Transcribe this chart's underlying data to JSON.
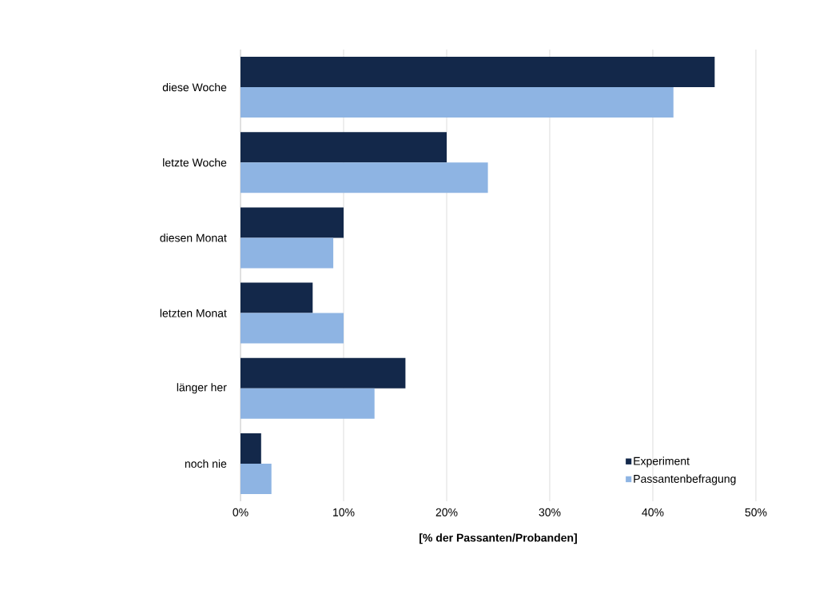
{
  "chart_data": {
    "type": "bar",
    "orientation": "horizontal",
    "xlabel": "[% der Passanten/Probanden]",
    "categories": [
      "diese Woche",
      "letzte Woche",
      "diesen Monat",
      "letzten Monat",
      "länger her",
      "noch nie"
    ],
    "series": [
      {
        "name": "Experiment",
        "color": "#13284a",
        "values": [
          46,
          20,
          10,
          7,
          16,
          2
        ]
      },
      {
        "name": "Passantenbefragung",
        "color": "#8eb4e3",
        "values": [
          42,
          24,
          9,
          10,
          13,
          3
        ]
      }
    ],
    "xlim": [
      0,
      50
    ],
    "xticks": [
      {
        "value": 0,
        "label": "0%"
      },
      {
        "value": 10,
        "label": "10%"
      },
      {
        "value": 20,
        "label": "20%"
      },
      {
        "value": 30,
        "label": "30%"
      },
      {
        "value": 40,
        "label": "40%"
      },
      {
        "value": 50,
        "label": "50%"
      }
    ],
    "grid": "x",
    "legend": "bottom right"
  }
}
